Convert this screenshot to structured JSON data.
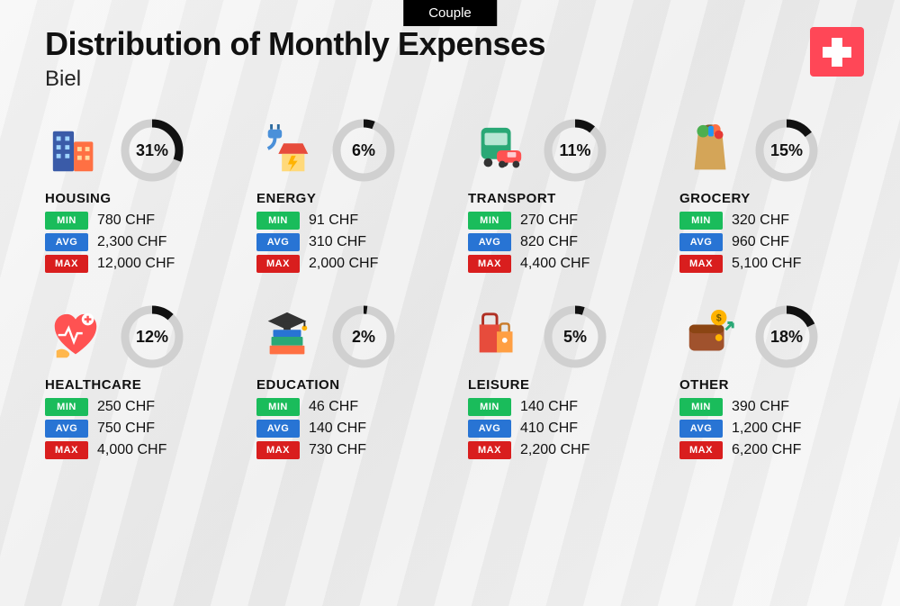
{
  "header": {
    "badge": "Couple",
    "title": "Distribution of Monthly Expenses",
    "subtitle": "Biel"
  },
  "currency": "CHF",
  "colors": {
    "min_badge": "#1abc5b",
    "avg_badge": "#2874d4",
    "max_badge": "#d91e1e",
    "ring_bg": "#d0d0d0",
    "ring_fg": "#111111",
    "flag_bg": "#ff4757"
  },
  "stat_labels": {
    "min": "MIN",
    "avg": "AVG",
    "max": "MAX"
  },
  "categories": [
    {
      "key": "housing",
      "name": "HOUSING",
      "percent": 31,
      "min": "780",
      "avg": "2,300",
      "max": "12,000"
    },
    {
      "key": "energy",
      "name": "ENERGY",
      "percent": 6,
      "min": "91",
      "avg": "310",
      "max": "2,000"
    },
    {
      "key": "transport",
      "name": "TRANSPORT",
      "percent": 11,
      "min": "270",
      "avg": "820",
      "max": "4,400"
    },
    {
      "key": "grocery",
      "name": "GROCERY",
      "percent": 15,
      "min": "320",
      "avg": "960",
      "max": "5,100"
    },
    {
      "key": "healthcare",
      "name": "HEALTHCARE",
      "percent": 12,
      "min": "250",
      "avg": "750",
      "max": "4,000"
    },
    {
      "key": "education",
      "name": "EDUCATION",
      "percent": 2,
      "min": "46",
      "avg": "140",
      "max": "730"
    },
    {
      "key": "leisure",
      "name": "LEISURE",
      "percent": 5,
      "min": "140",
      "avg": "410",
      "max": "2,200"
    },
    {
      "key": "other",
      "name": "OTHER",
      "percent": 18,
      "min": "390",
      "avg": "1,200",
      "max": "6,200"
    }
  ],
  "donut": {
    "radius": 30,
    "stroke_width": 9
  }
}
